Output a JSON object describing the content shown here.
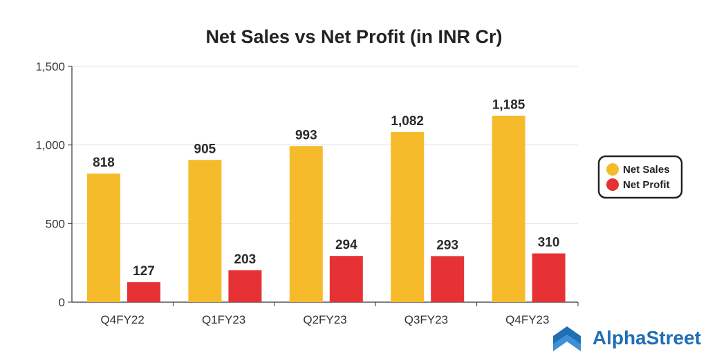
{
  "chart_data": {
    "type": "bar",
    "title": "Net Sales vs Net Profit (in INR Cr)",
    "categories": [
      "Q4FY22",
      "Q1FY23",
      "Q2FY23",
      "Q3FY23",
      "Q4FY23"
    ],
    "series": [
      {
        "name": "Net Sales",
        "color": "#F6BB2B",
        "values": [
          818,
          905,
          993,
          1082,
          1185
        ],
        "labels": [
          "818",
          "905",
          "993",
          "1,082",
          "1,185"
        ]
      },
      {
        "name": "Net Profit",
        "color": "#E63234",
        "values": [
          127,
          203,
          294,
          293,
          310
        ],
        "labels": [
          "127",
          "203",
          "294",
          "293",
          "310"
        ]
      }
    ],
    "yticks": [
      0,
      500,
      1000,
      1500
    ],
    "ytick_labels": [
      "0",
      "500",
      "1,000",
      "1,500"
    ],
    "ylim": [
      0,
      1500
    ],
    "grid": true,
    "legend_position": "right"
  },
  "brand": {
    "name": "AlphaStreet",
    "color": "#1F6FB5",
    "icon": "alphastreet-logo-icon"
  }
}
